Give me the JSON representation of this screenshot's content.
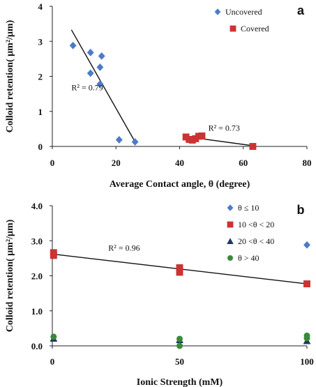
{
  "chart_data": [
    {
      "type": "scatter",
      "panel_label": "a",
      "xlabel": "Average Contact angle, θ (degree)",
      "ylabel": "Colloid retention( µm²/µm)",
      "xlim": [
        0,
        80
      ],
      "ylim": [
        0,
        4
      ],
      "x_ticks": [
        "0",
        "20",
        "40",
        "60",
        "80"
      ],
      "y_ticks": [
        "0",
        "1",
        "2",
        "3",
        "4"
      ],
      "legend_position": "top-right",
      "series": [
        {
          "name": "Uncovered",
          "marker": "diamond",
          "color": "#4a7cc9",
          "points": [
            [
              6.5,
              2.88
            ],
            [
              12,
              2.68
            ],
            [
              12,
              2.09
            ],
            [
              15,
              2.26
            ],
            [
              15.5,
              2.58
            ],
            [
              15,
              1.78
            ],
            [
              21,
              0.19
            ],
            [
              26,
              0.13
            ]
          ]
        },
        {
          "name": "Covered",
          "marker": "square",
          "color": "#cc3333",
          "points": [
            [
              42,
              0.27
            ],
            [
              43,
              0.2
            ],
            [
              44,
              0.18
            ],
            [
              45,
              0.22
            ],
            [
              46,
              0.29
            ],
            [
              47,
              0.3
            ],
            [
              63,
              0.0
            ]
          ]
        }
      ],
      "trendlines": [
        {
          "from": [
            6,
            3.33
          ],
          "to": [
            26,
            0.13
          ],
          "color": "#111111"
        },
        {
          "from": [
            42,
            0.28
          ],
          "to": [
            63,
            0.02
          ],
          "color": "#111111"
        }
      ],
      "annotations": [
        {
          "text": "R² = 0.79",
          "x": 6,
          "y": 1.6
        },
        {
          "text": "R² = 0.73",
          "x": 49,
          "y": 0.45
        }
      ]
    },
    {
      "type": "scatter",
      "panel_label": "b",
      "xlabel": "Ionic Strength (mM)",
      "ylabel": "Colloid retention( µm²/µm)",
      "xlim": [
        0,
        100
      ],
      "ylim": [
        0,
        4
      ],
      "x_ticks": [
        "0",
        "50",
        "100"
      ],
      "y_ticks": [
        "0.0",
        "1.0",
        "2.0",
        "3.0",
        "4.0"
      ],
      "legend_position": "top-right",
      "series": [
        {
          "name": "θ ≤ 10",
          "marker": "diamond",
          "color": "#4a7cc9",
          "points": [
            [
              100,
              2.88
            ]
          ]
        },
        {
          "name": "10 <θ < 20",
          "marker": "square",
          "color": "#cc3333",
          "points": [
            [
              0.5,
              2.66
            ],
            [
              0.5,
              2.58
            ],
            [
              50,
              2.23
            ],
            [
              50,
              2.1
            ],
            [
              100,
              1.77
            ]
          ]
        },
        {
          "name": "20 <θ < 40",
          "marker": "triangle",
          "color": "#1f3864",
          "points": [
            [
              0.5,
              0.21
            ],
            [
              50,
              0.17
            ],
            [
              100,
              0.14
            ]
          ]
        },
        {
          "name": "θ > 40",
          "marker": "circle",
          "color": "#3a8a3a",
          "points": [
            [
              0.5,
              0.26
            ],
            [
              50,
              0.2
            ],
            [
              50,
              0.0
            ],
            [
              100,
              0.29
            ],
            [
              100,
              0.22
            ]
          ]
        }
      ],
      "trendlines": [
        {
          "from": [
            0,
            2.62
          ],
          "to": [
            100,
            1.77
          ],
          "color": "#111111"
        }
      ],
      "annotations": [
        {
          "text": "R² = 0.96",
          "x": 22,
          "y": 2.72
        }
      ]
    }
  ]
}
